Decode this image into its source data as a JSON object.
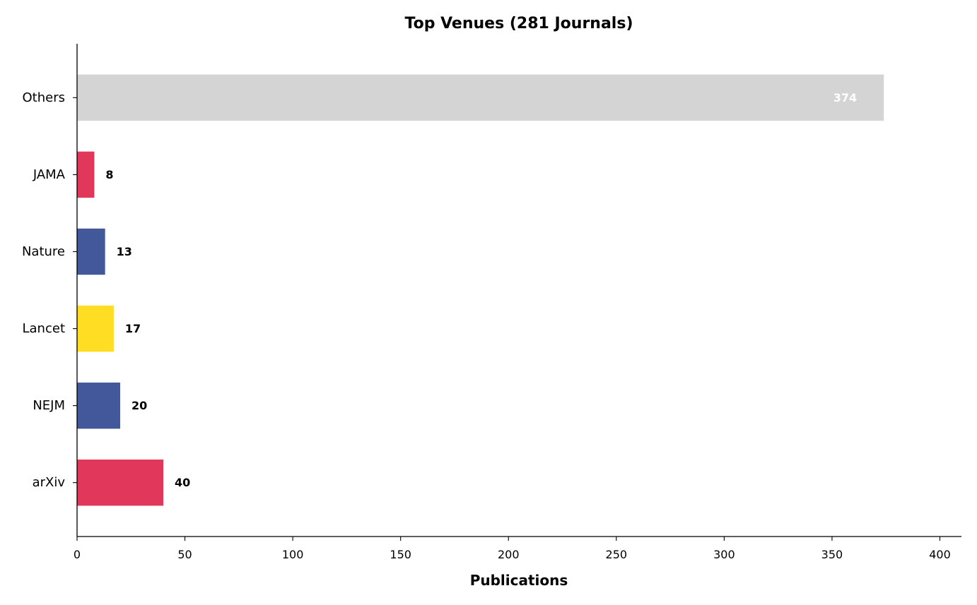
{
  "chart_data": {
    "type": "bar",
    "orientation": "horizontal",
    "title": "Top Venues (281 Journals)",
    "xlabel": "Publications",
    "ylabel": "",
    "xlim": [
      0,
      410
    ],
    "xticks": [
      0,
      50,
      100,
      150,
      200,
      250,
      300,
      350,
      400
    ],
    "grid": false,
    "categories": [
      "arXiv",
      "NEJM",
      "Lancet",
      "Nature",
      "JAMA",
      "Others"
    ],
    "values": [
      40,
      20,
      17,
      13,
      8,
      374
    ],
    "colors": [
      "#e1375a",
      "#42589a",
      "#ffdd22",
      "#42589a",
      "#e1375a",
      "#d4d4d4"
    ],
    "label_colors": [
      "#000000",
      "#000000",
      "#000000",
      "#000000",
      "#000000",
      "#ffffff"
    ],
    "label_inside": [
      false,
      false,
      false,
      false,
      false,
      true
    ]
  }
}
